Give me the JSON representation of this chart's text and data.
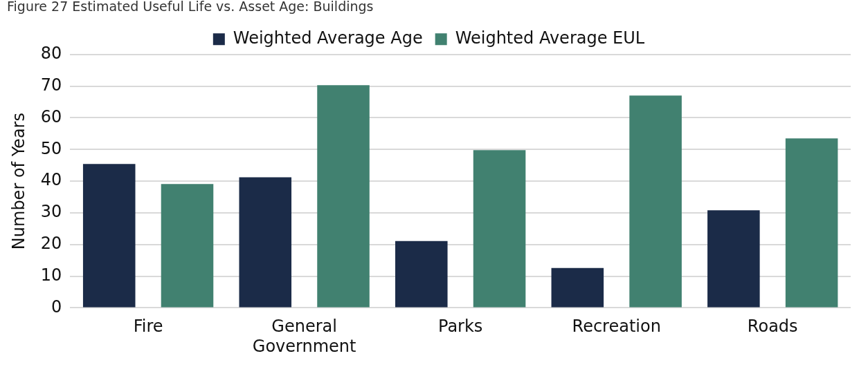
{
  "chart_data": {
    "type": "bar",
    "title": "Figure 27 Estimated Useful Life vs. Asset Age: Buildings",
    "ylabel": "Number of Years",
    "categories": [
      "Fire",
      "General Government",
      "Parks",
      "Recreation",
      "Roads"
    ],
    "series": [
      {
        "name": "Weighted Average Age",
        "color": "#1b2b48",
        "values": [
          45.4,
          41.2,
          21.1,
          12.6,
          30.8
        ]
      },
      {
        "name": "Weighted Average EUL",
        "color": "#418170",
        "values": [
          39.1,
          70.3,
          49.8,
          67,
          53.5
        ]
      }
    ],
    "ylim": [
      0,
      80
    ],
    "yticks": [
      0,
      10,
      20,
      30,
      40,
      50,
      60,
      70,
      80
    ],
    "grid": "y",
    "legend": "top"
  }
}
